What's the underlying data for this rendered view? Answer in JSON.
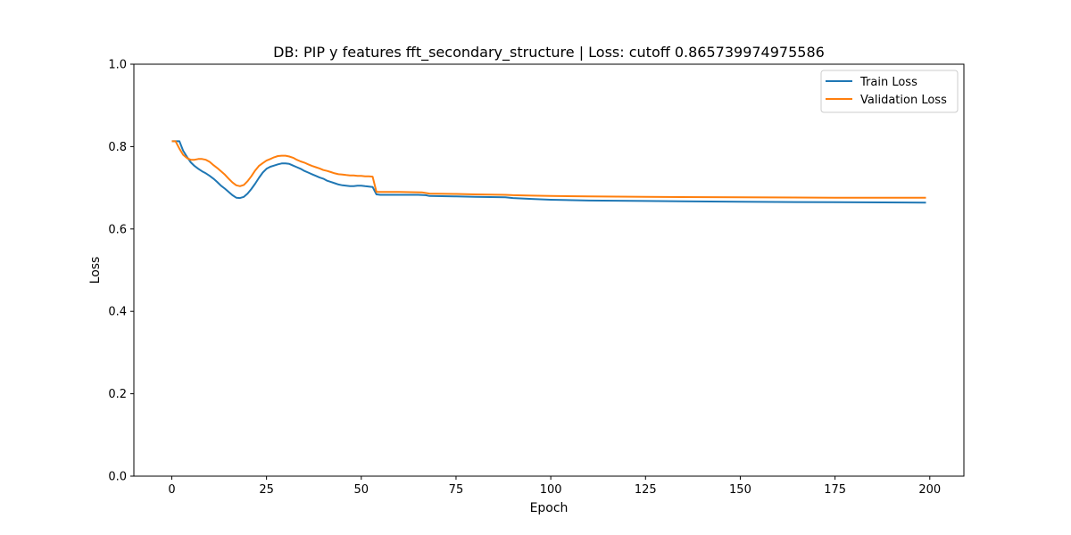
{
  "chart_data": {
    "type": "line",
    "title": "DB: PIP y features fft_secondary_structure | Loss: cutoff 0.865739974975586",
    "xlabel": "Epoch",
    "ylabel": "Loss",
    "xlim": [
      -10,
      209
    ],
    "ylim": [
      0.0,
      1.0
    ],
    "xticks": [
      0,
      25,
      50,
      75,
      100,
      125,
      150,
      175,
      200
    ],
    "yticks": [
      0.0,
      0.2,
      0.4,
      0.6,
      0.8,
      1.0
    ],
    "xtick_labels": [
      "0",
      "25",
      "50",
      "75",
      "100",
      "125",
      "150",
      "175",
      "200"
    ],
    "ytick_labels": [
      "0.0",
      "0.2",
      "0.4",
      "0.6",
      "0.8",
      "1.0"
    ],
    "grid": false,
    "legend_position": "top-right",
    "series": [
      {
        "name": "Train Loss",
        "color": "#1f77b4",
        "points": [
          [
            0,
            0.813
          ],
          [
            1,
            0.813
          ],
          [
            2,
            0.813
          ],
          [
            3,
            0.79
          ],
          [
            4,
            0.775
          ],
          [
            5,
            0.762
          ],
          [
            6,
            0.753
          ],
          [
            7,
            0.746
          ],
          [
            8,
            0.74
          ],
          [
            9,
            0.735
          ],
          [
            10,
            0.729
          ],
          [
            11,
            0.722
          ],
          [
            12,
            0.714
          ],
          [
            13,
            0.705
          ],
          [
            14,
            0.698
          ],
          [
            15,
            0.69
          ],
          [
            16,
            0.682
          ],
          [
            17,
            0.676
          ],
          [
            18,
            0.675
          ],
          [
            19,
            0.678
          ],
          [
            20,
            0.686
          ],
          [
            21,
            0.697
          ],
          [
            22,
            0.71
          ],
          [
            23,
            0.724
          ],
          [
            24,
            0.737
          ],
          [
            25,
            0.746
          ],
          [
            26,
            0.751
          ],
          [
            27,
            0.754
          ],
          [
            28,
            0.757
          ],
          [
            29,
            0.759
          ],
          [
            30,
            0.759
          ],
          [
            31,
            0.758
          ],
          [
            32,
            0.754
          ],
          [
            33,
            0.75
          ],
          [
            34,
            0.746
          ],
          [
            35,
            0.741
          ],
          [
            36,
            0.737
          ],
          [
            37,
            0.733
          ],
          [
            38,
            0.729
          ],
          [
            39,
            0.725
          ],
          [
            40,
            0.722
          ],
          [
            41,
            0.717
          ],
          [
            42,
            0.714
          ],
          [
            43,
            0.711
          ],
          [
            44,
            0.708
          ],
          [
            45,
            0.706
          ],
          [
            46,
            0.705
          ],
          [
            47,
            0.704
          ],
          [
            48,
            0.704
          ],
          [
            49,
            0.705
          ],
          [
            50,
            0.705
          ],
          [
            51,
            0.704
          ],
          [
            52,
            0.703
          ],
          [
            53,
            0.702
          ],
          [
            54,
            0.684
          ],
          [
            55,
            0.683
          ],
          [
            60,
            0.683
          ],
          [
            65,
            0.683
          ],
          [
            67,
            0.682
          ],
          [
            68,
            0.68
          ],
          [
            75,
            0.679
          ],
          [
            80,
            0.678
          ],
          [
            88,
            0.677
          ],
          [
            90,
            0.675
          ],
          [
            95,
            0.673
          ],
          [
            100,
            0.671
          ],
          [
            110,
            0.669
          ],
          [
            125,
            0.668
          ],
          [
            150,
            0.666
          ],
          [
            175,
            0.665
          ],
          [
            199,
            0.664
          ]
        ]
      },
      {
        "name": "Validation Loss",
        "color": "#ff7f0e",
        "points": [
          [
            0,
            0.813
          ],
          [
            1,
            0.813
          ],
          [
            2,
            0.795
          ],
          [
            3,
            0.78
          ],
          [
            4,
            0.772
          ],
          [
            5,
            0.768
          ],
          [
            6,
            0.768
          ],
          [
            7,
            0.77
          ],
          [
            8,
            0.77
          ],
          [
            9,
            0.768
          ],
          [
            10,
            0.763
          ],
          [
            11,
            0.755
          ],
          [
            12,
            0.748
          ],
          [
            13,
            0.74
          ],
          [
            14,
            0.732
          ],
          [
            15,
            0.722
          ],
          [
            16,
            0.713
          ],
          [
            17,
            0.706
          ],
          [
            18,
            0.704
          ],
          [
            19,
            0.707
          ],
          [
            20,
            0.716
          ],
          [
            21,
            0.728
          ],
          [
            22,
            0.742
          ],
          [
            23,
            0.753
          ],
          [
            24,
            0.76
          ],
          [
            25,
            0.766
          ],
          [
            26,
            0.77
          ],
          [
            27,
            0.774
          ],
          [
            28,
            0.777
          ],
          [
            29,
            0.778
          ],
          [
            30,
            0.778
          ],
          [
            31,
            0.776
          ],
          [
            32,
            0.773
          ],
          [
            33,
            0.768
          ],
          [
            34,
            0.764
          ],
          [
            35,
            0.761
          ],
          [
            36,
            0.757
          ],
          [
            37,
            0.753
          ],
          [
            38,
            0.75
          ],
          [
            39,
            0.747
          ],
          [
            40,
            0.743
          ],
          [
            41,
            0.741
          ],
          [
            42,
            0.738
          ],
          [
            43,
            0.735
          ],
          [
            44,
            0.733
          ],
          [
            45,
            0.732
          ],
          [
            46,
            0.731
          ],
          [
            47,
            0.73
          ],
          [
            48,
            0.73
          ],
          [
            49,
            0.729
          ],
          [
            50,
            0.729
          ],
          [
            51,
            0.728
          ],
          [
            52,
            0.728
          ],
          [
            53,
            0.727
          ],
          [
            54,
            0.69
          ],
          [
            55,
            0.69
          ],
          [
            60,
            0.69
          ],
          [
            66,
            0.689
          ],
          [
            68,
            0.686
          ],
          [
            75,
            0.685
          ],
          [
            80,
            0.684
          ],
          [
            88,
            0.683
          ],
          [
            90,
            0.682
          ],
          [
            95,
            0.681
          ],
          [
            100,
            0.68
          ],
          [
            110,
            0.679
          ],
          [
            125,
            0.678
          ],
          [
            150,
            0.677
          ],
          [
            175,
            0.676
          ],
          [
            199,
            0.676
          ]
        ]
      }
    ]
  }
}
